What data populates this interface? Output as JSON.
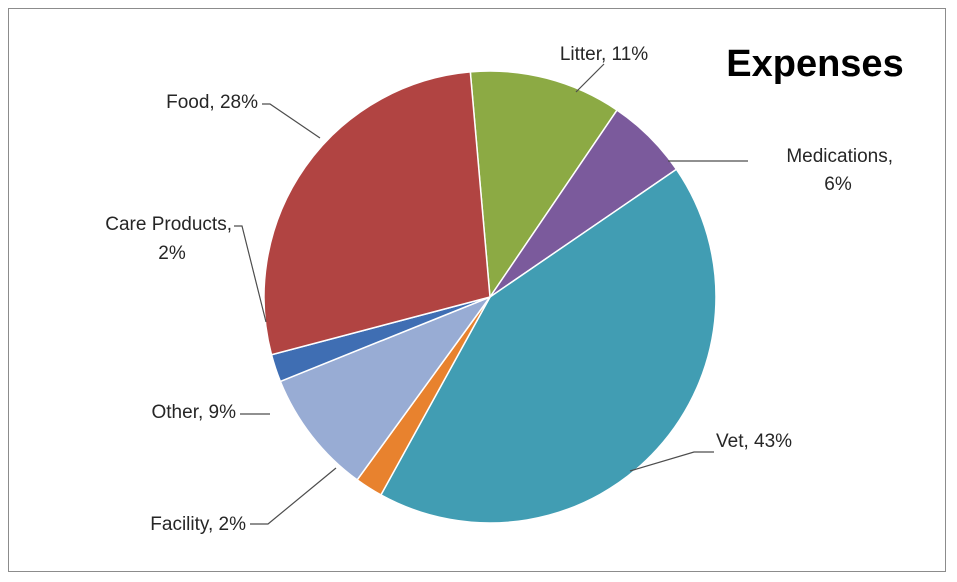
{
  "chart_data": {
    "type": "pie",
    "title": "Expenses",
    "categories": [
      "Litter",
      "Medications",
      "Vet",
      "Facility",
      "Other",
      "Care Products",
      "Food"
    ],
    "values": [
      11,
      6,
      43,
      2,
      9,
      2,
      28
    ],
    "unit": "%",
    "data_labels": [
      {
        "name": "Litter",
        "line1": "Litter, 11%",
        "line2": ""
      },
      {
        "name": "Medications",
        "line1": "Medications,",
        "line2": "6%"
      },
      {
        "name": "Vet",
        "line1": "Vet, 43%",
        "line2": ""
      },
      {
        "name": "Facility",
        "line1": "Facility, 2%",
        "line2": ""
      },
      {
        "name": "Other",
        "line1": "Other, 9%",
        "line2": ""
      },
      {
        "name": "Care Products",
        "line1": "Care Products,",
        "line2": "2%"
      },
      {
        "name": "Food",
        "line1": "Food, 28%",
        "line2": ""
      }
    ],
    "colors": [
      "#8caa44",
      "#7b5a9c",
      "#419db3",
      "#e8822e",
      "#98acd4",
      "#3f6eb3",
      "#b14442"
    ],
    "legend": "none"
  }
}
